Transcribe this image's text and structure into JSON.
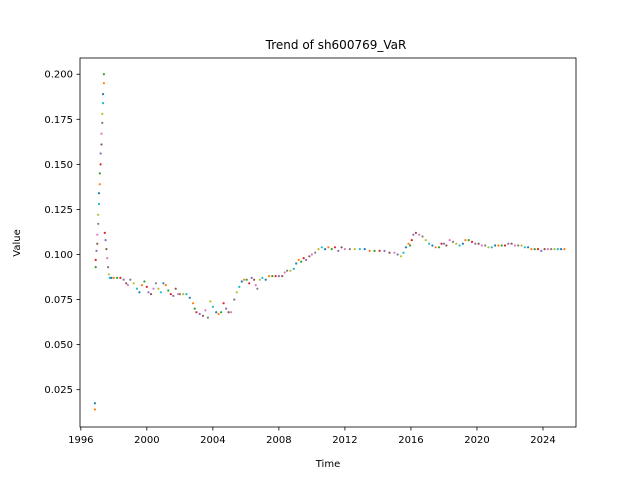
{
  "chart_data": {
    "type": "scatter",
    "title": "Trend of sh600769_VaR",
    "xlabel": "Time",
    "ylabel": "Value",
    "xlim": [
      1995.95,
      2026.0
    ],
    "ylim": [
      0.0043,
      0.209
    ],
    "xticks": [
      1996,
      2000,
      2004,
      2008,
      2012,
      2016,
      2020,
      2024
    ],
    "xtick_labels": [
      "1996",
      "2000",
      "2004",
      "2008",
      "2012",
      "2016",
      "2020",
      "2024"
    ],
    "yticks": [
      0.025,
      0.05,
      0.075,
      0.1,
      0.125,
      0.15,
      0.175,
      0.2
    ],
    "ytick_labels": [
      "0.025",
      "0.050",
      "0.075",
      "0.100",
      "0.125",
      "0.150",
      "0.175",
      "0.200"
    ],
    "grid": false,
    "colors": [
      "#1f77b4",
      "#ff7f0e",
      "#2ca02c",
      "#d62728",
      "#9467bd",
      "#8c564b",
      "#e377c2",
      "#7f7f7f",
      "#bcbd22",
      "#17becf"
    ],
    "points": [
      [
        1996.85,
        0.0175
      ],
      [
        1996.85,
        0.014
      ],
      [
        1996.9,
        0.093
      ],
      [
        1996.9,
        0.097
      ],
      [
        1996.95,
        0.102
      ],
      [
        1997.0,
        0.106
      ],
      [
        1997.0,
        0.111
      ],
      [
        1997.05,
        0.117
      ],
      [
        1997.05,
        0.122
      ],
      [
        1997.1,
        0.128
      ],
      [
        1997.1,
        0.134
      ],
      [
        1997.15,
        0.139
      ],
      [
        1997.15,
        0.145
      ],
      [
        1997.2,
        0.15
      ],
      [
        1997.2,
        0.156
      ],
      [
        1997.25,
        0.161
      ],
      [
        1997.25,
        0.167
      ],
      [
        1997.3,
        0.173
      ],
      [
        1997.3,
        0.178
      ],
      [
        1997.35,
        0.184
      ],
      [
        1997.35,
        0.189
      ],
      [
        1997.4,
        0.195
      ],
      [
        1997.4,
        0.2
      ],
      [
        1997.45,
        0.112
      ],
      [
        1997.5,
        0.108
      ],
      [
        1997.55,
        0.103
      ],
      [
        1997.6,
        0.098
      ],
      [
        1997.65,
        0.093
      ],
      [
        1997.7,
        0.089
      ],
      [
        1997.75,
        0.087
      ],
      [
        1997.85,
        0.087
      ],
      [
        1998.0,
        0.087
      ],
      [
        1998.2,
        0.087
      ],
      [
        1998.4,
        0.087
      ],
      [
        1998.6,
        0.086
      ],
      [
        1998.75,
        0.084
      ],
      [
        1998.85,
        0.083
      ],
      [
        1999.0,
        0.086
      ],
      [
        1999.2,
        0.084
      ],
      [
        1999.4,
        0.081
      ],
      [
        1999.55,
        0.079
      ],
      [
        1999.7,
        0.083
      ],
      [
        1999.85,
        0.085
      ],
      [
        2000.0,
        0.082
      ],
      [
        2000.1,
        0.079
      ],
      [
        2000.25,
        0.078
      ],
      [
        2000.4,
        0.081
      ],
      [
        2000.55,
        0.084
      ],
      [
        2000.7,
        0.081
      ],
      [
        2000.85,
        0.079
      ],
      [
        2001.0,
        0.084
      ],
      [
        2001.15,
        0.083
      ],
      [
        2001.3,
        0.08
      ],
      [
        2001.45,
        0.078
      ],
      [
        2001.6,
        0.077
      ],
      [
        2001.75,
        0.081
      ],
      [
        2001.9,
        0.078
      ],
      [
        2002.0,
        0.078
      ],
      [
        2002.2,
        0.078
      ],
      [
        2002.4,
        0.078
      ],
      [
        2002.6,
        0.076
      ],
      [
        2002.8,
        0.073
      ],
      [
        2002.9,
        0.07
      ],
      [
        2003.0,
        0.068
      ],
      [
        2003.2,
        0.067
      ],
      [
        2003.4,
        0.066
      ],
      [
        2003.55,
        0.069
      ],
      [
        2003.7,
        0.065
      ],
      [
        2003.85,
        0.074
      ],
      [
        2004.0,
        0.071
      ],
      [
        2004.2,
        0.068
      ],
      [
        2004.35,
        0.067
      ],
      [
        2004.5,
        0.068
      ],
      [
        2004.65,
        0.073
      ],
      [
        2004.8,
        0.07
      ],
      [
        2004.95,
        0.068
      ],
      [
        2005.1,
        0.068
      ],
      [
        2005.3,
        0.075
      ],
      [
        2005.45,
        0.079
      ],
      [
        2005.6,
        0.082
      ],
      [
        2005.75,
        0.085
      ],
      [
        2005.9,
        0.086
      ],
      [
        2006.05,
        0.086
      ],
      [
        2006.2,
        0.084
      ],
      [
        2006.35,
        0.087
      ],
      [
        2006.5,
        0.086
      ],
      [
        2006.6,
        0.083
      ],
      [
        2006.7,
        0.081
      ],
      [
        2006.85,
        0.086
      ],
      [
        2007.0,
        0.087
      ],
      [
        2007.2,
        0.086
      ],
      [
        2007.4,
        0.088
      ],
      [
        2007.6,
        0.088
      ],
      [
        2007.8,
        0.088
      ],
      [
        2008.0,
        0.088
      ],
      [
        2008.2,
        0.088
      ],
      [
        2008.35,
        0.09
      ],
      [
        2008.5,
        0.091
      ],
      [
        2008.7,
        0.091
      ],
      [
        2008.9,
        0.092
      ],
      [
        2009.05,
        0.095
      ],
      [
        2009.2,
        0.097
      ],
      [
        2009.35,
        0.096
      ],
      [
        2009.5,
        0.098
      ],
      [
        2009.65,
        0.097
      ],
      [
        2009.85,
        0.099
      ],
      [
        2010.0,
        0.1
      ],
      [
        2010.2,
        0.101
      ],
      [
        2010.4,
        0.103
      ],
      [
        2010.6,
        0.104
      ],
      [
        2010.8,
        0.103
      ],
      [
        2011.0,
        0.104
      ],
      [
        2011.2,
        0.103
      ],
      [
        2011.4,
        0.104
      ],
      [
        2011.6,
        0.102
      ],
      [
        2011.8,
        0.104
      ],
      [
        2012.0,
        0.103
      ],
      [
        2012.3,
        0.103
      ],
      [
        2012.6,
        0.103
      ],
      [
        2012.9,
        0.103
      ],
      [
        2013.2,
        0.103
      ],
      [
        2013.5,
        0.102
      ],
      [
        2013.8,
        0.102
      ],
      [
        2014.1,
        0.102
      ],
      [
        2014.4,
        0.102
      ],
      [
        2014.7,
        0.101
      ],
      [
        2015.0,
        0.101
      ],
      [
        2015.2,
        0.1
      ],
      [
        2015.4,
        0.099
      ],
      [
        2015.55,
        0.101
      ],
      [
        2015.7,
        0.104
      ],
      [
        2015.85,
        0.106
      ],
      [
        2015.95,
        0.105
      ],
      [
        2016.05,
        0.108
      ],
      [
        2016.15,
        0.111
      ],
      [
        2016.3,
        0.112
      ],
      [
        2016.5,
        0.111
      ],
      [
        2016.7,
        0.11
      ],
      [
        2016.9,
        0.108
      ],
      [
        2017.1,
        0.106
      ],
      [
        2017.3,
        0.105
      ],
      [
        2017.5,
        0.104
      ],
      [
        2017.7,
        0.104
      ],
      [
        2017.85,
        0.106
      ],
      [
        2018.0,
        0.106
      ],
      [
        2018.15,
        0.105
      ],
      [
        2018.35,
        0.108
      ],
      [
        2018.55,
        0.107
      ],
      [
        2018.75,
        0.106
      ],
      [
        2018.95,
        0.105
      ],
      [
        2019.15,
        0.106
      ],
      [
        2019.3,
        0.108
      ],
      [
        2019.5,
        0.108
      ],
      [
        2019.7,
        0.107
      ],
      [
        2019.9,
        0.106
      ],
      [
        2020.1,
        0.106
      ],
      [
        2020.3,
        0.105
      ],
      [
        2020.5,
        0.105
      ],
      [
        2020.7,
        0.104
      ],
      [
        2020.9,
        0.104
      ],
      [
        2021.1,
        0.105
      ],
      [
        2021.3,
        0.105
      ],
      [
        2021.5,
        0.105
      ],
      [
        2021.7,
        0.105
      ],
      [
        2021.9,
        0.106
      ],
      [
        2022.1,
        0.106
      ],
      [
        2022.3,
        0.105
      ],
      [
        2022.5,
        0.105
      ],
      [
        2022.7,
        0.105
      ],
      [
        2022.9,
        0.104
      ],
      [
        2023.1,
        0.104
      ],
      [
        2023.3,
        0.103
      ],
      [
        2023.5,
        0.103
      ],
      [
        2023.7,
        0.103
      ],
      [
        2023.9,
        0.102
      ],
      [
        2024.1,
        0.103
      ],
      [
        2024.3,
        0.103
      ],
      [
        2024.5,
        0.103
      ],
      [
        2024.7,
        0.103
      ],
      [
        2024.9,
        0.103
      ],
      [
        2025.1,
        0.103
      ],
      [
        2025.3,
        0.103
      ]
    ]
  }
}
